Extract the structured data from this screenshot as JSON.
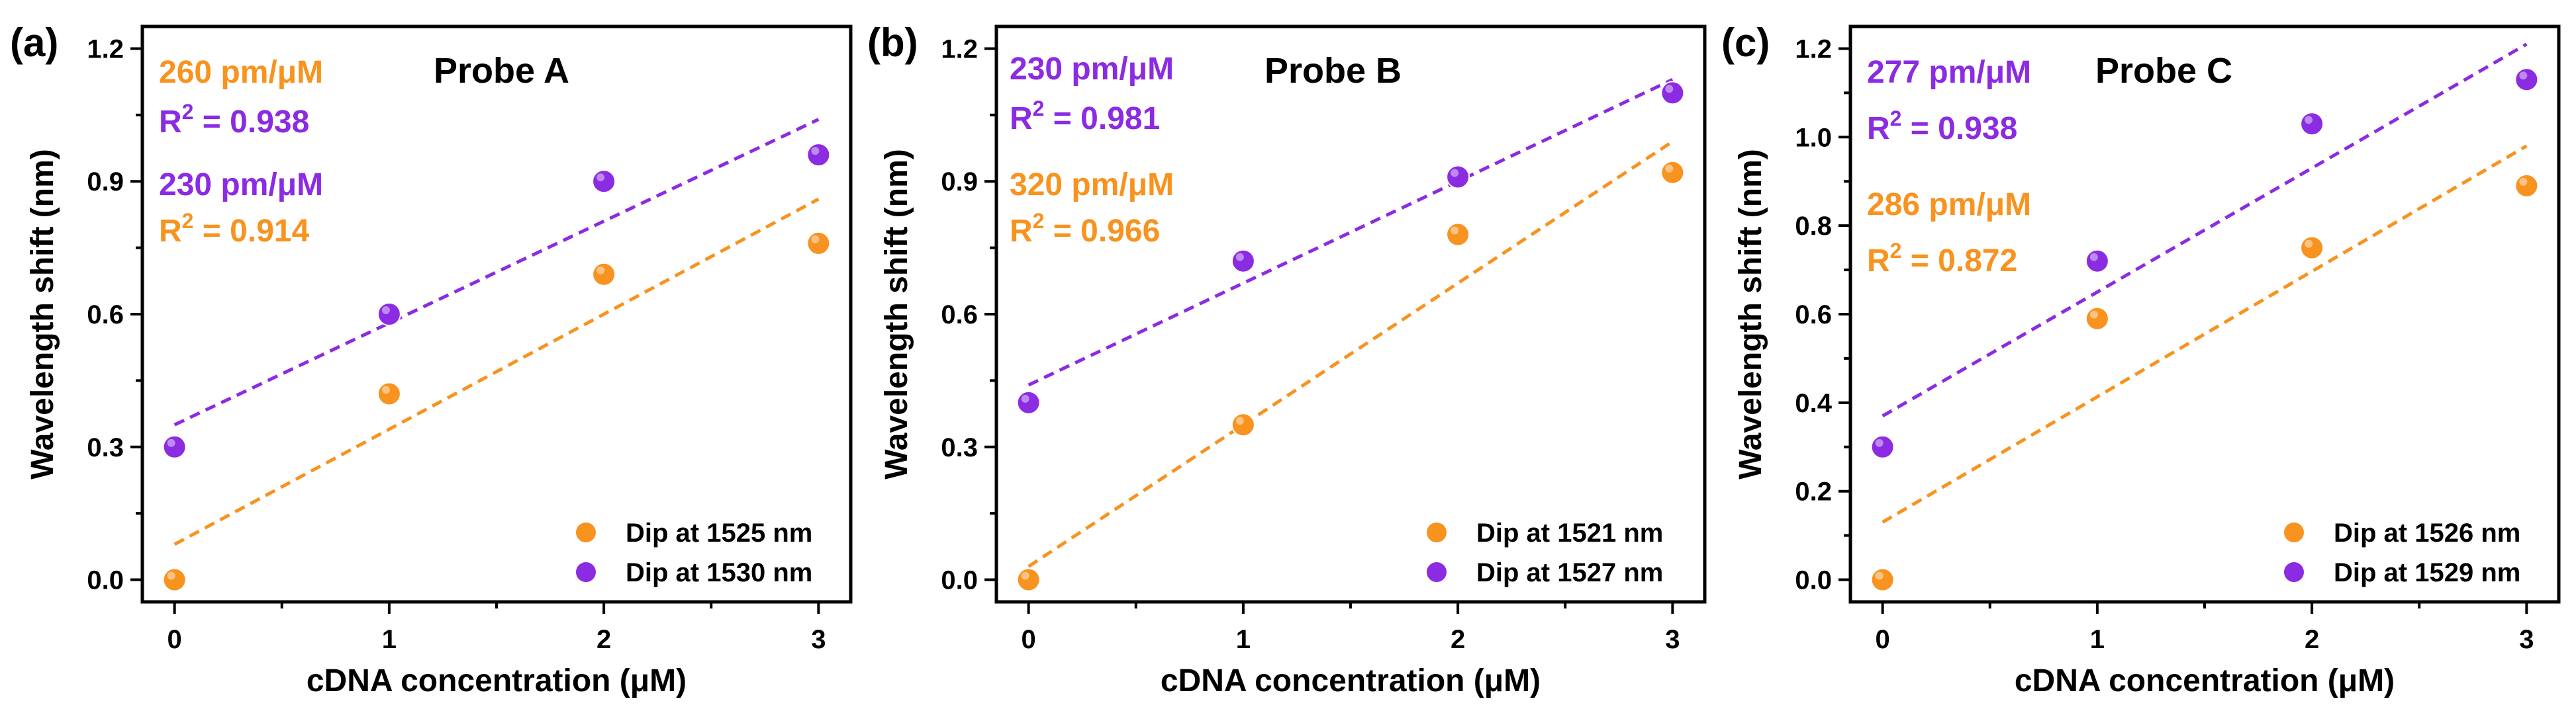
{
  "chart_data": [
    {
      "type": "scatter",
      "panel_label": "(a)",
      "title": "Probe A",
      "xlabel": "cDNA concentration (μM)",
      "ylabel": "Wavelength shift (nm)",
      "xlim": [
        -0.15,
        3.15
      ],
      "ylim": [
        -0.05,
        1.25
      ],
      "xticks": [
        0,
        1,
        2,
        3
      ],
      "xtick_labels": [
        "0",
        "1",
        "2",
        "3"
      ],
      "yticks": [
        0,
        0.3,
        0.6,
        0.9,
        1.2
      ],
      "ytick_labels": [
        "0.0",
        "0.3",
        "0.6",
        "0.9",
        "1.2"
      ],
      "legend_position": "bottom-right",
      "series": [
        {
          "name": "Dip at 1525 nm",
          "color": "#f7931e",
          "x": [
            0,
            1,
            2,
            3
          ],
          "y": [
            0.0,
            0.42,
            0.69,
            0.76
          ],
          "fit": {
            "x": [
              0,
              3
            ],
            "y": [
              0.08,
              0.86
            ]
          },
          "slope_text": "260 pm/μM",
          "r2_label": "R",
          "r2_sup": "2",
          "r2_value": " = 0.914"
        },
        {
          "name": "Dip at 1530 nm",
          "color": "#8b2be2",
          "x": [
            0,
            1,
            2,
            3
          ],
          "y": [
            0.3,
            0.6,
            0.9,
            0.96
          ],
          "fit": {
            "x": [
              0,
              3
            ],
            "y": [
              0.35,
              1.04
            ]
          },
          "slope_text": "230 pm/μM",
          "r2_label": "R",
          "r2_sup": "2",
          "r2_value": " = 0.938"
        }
      ]
    },
    {
      "type": "scatter",
      "panel_label": "(b)",
      "title": "Probe B",
      "xlabel": "cDNA concentration (μM)",
      "ylabel": "Wavelength shift (nm)",
      "xlim": [
        -0.15,
        3.15
      ],
      "ylim": [
        -0.05,
        1.25
      ],
      "xticks": [
        0,
        1,
        2,
        3
      ],
      "xtick_labels": [
        "0",
        "1",
        "2",
        "3"
      ],
      "yticks": [
        0,
        0.3,
        0.6,
        0.9,
        1.2
      ],
      "ytick_labels": [
        "0.0",
        "0.3",
        "0.6",
        "0.9",
        "1.2"
      ],
      "legend_position": "bottom-right",
      "series": [
        {
          "name": "Dip at 1521 nm",
          "color": "#f7931e",
          "x": [
            0,
            1,
            2,
            3
          ],
          "y": [
            0.0,
            0.35,
            0.78,
            0.92
          ],
          "fit": {
            "x": [
              0,
              3
            ],
            "y": [
              0.03,
              0.99
            ]
          },
          "slope_text": "320 pm/μM",
          "r2_label": "R",
          "r2_sup": "2",
          "r2_value": " = 0.966"
        },
        {
          "name": "Dip at 1527 nm",
          "color": "#8b2be2",
          "x": [
            0,
            1,
            2,
            3
          ],
          "y": [
            0.4,
            0.72,
            0.91,
            1.1
          ],
          "fit": {
            "x": [
              0,
              3
            ],
            "y": [
              0.44,
              1.13
            ]
          },
          "slope_text": "230 pm/μM",
          "r2_label": "R",
          "r2_sup": "2",
          "r2_value": " = 0.981"
        }
      ]
    },
    {
      "type": "scatter",
      "panel_label": "(c)",
      "title": "Probe C",
      "xlabel": "cDNA concentration (μM)",
      "ylabel": "Wavelength shift (nm)",
      "xlim": [
        -0.15,
        3.15
      ],
      "ylim": [
        -0.05,
        1.25
      ],
      "xticks": [
        0,
        1,
        2,
        3
      ],
      "xtick_labels": [
        "0",
        "1",
        "2",
        "3"
      ],
      "yticks": [
        0,
        0.2,
        0.4,
        0.6,
        0.8,
        1.0,
        1.2
      ],
      "ytick_labels": [
        "0.0",
        "0.2",
        "0.4",
        "0.6",
        "0.8",
        "1.0",
        "1.2"
      ],
      "legend_position": "bottom-right",
      "series": [
        {
          "name": "Dip at 1526 nm",
          "color": "#f7931e",
          "x": [
            0,
            1,
            2,
            3
          ],
          "y": [
            0.0,
            0.59,
            0.75,
            0.89
          ],
          "fit": {
            "x": [
              0,
              3
            ],
            "y": [
              0.13,
              0.98
            ]
          },
          "slope_text": "286 pm/μM",
          "r2_label": "R",
          "r2_sup": "2",
          "r2_value": " = 0.872"
        },
        {
          "name": "Dip at 1529 nm",
          "color": "#8b2be2",
          "x": [
            0,
            1,
            2,
            3
          ],
          "y": [
            0.3,
            0.72,
            1.03,
            1.13
          ],
          "fit": {
            "x": [
              0,
              3
            ],
            "y": [
              0.37,
              1.21
            ]
          },
          "slope_text": "277 pm/μM",
          "r2_label": "R",
          "r2_sup": "2",
          "r2_value": " = 0.938"
        }
      ]
    }
  ]
}
